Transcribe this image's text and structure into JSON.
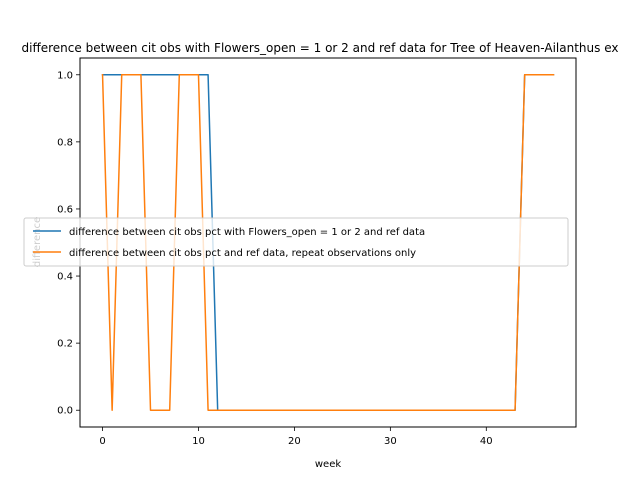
{
  "chart_data": {
    "type": "line",
    "title": "difference between cit obs with Flowers_open = 1 or 2 and ref data for Tree of Heaven-Ailanthus ex",
    "xlabel": "week",
    "ylabel": "difference",
    "xlim": [
      -2.35,
      49.35
    ],
    "ylim": [
      -0.05,
      1.05
    ],
    "xticks": [
      0,
      10,
      20,
      30,
      40
    ],
    "yticks": [
      0.0,
      0.2,
      0.4,
      0.6,
      0.8,
      1.0
    ],
    "xtick_labels": [
      "0",
      "10",
      "20",
      "30",
      "40"
    ],
    "ytick_labels": [
      "0.0",
      "0.2",
      "0.4",
      "0.6",
      "0.8",
      "1.0"
    ],
    "grid": false,
    "legend_position": "center-left",
    "series": [
      {
        "name": "difference between cit obs pct with Flowers_open = 1 or 2 and ref data",
        "color": "#1f77b4",
        "x": [
          0,
          1,
          2,
          3,
          4,
          5,
          6,
          7,
          8,
          9,
          10,
          11,
          12,
          13,
          14,
          15,
          16,
          17,
          18,
          19,
          20,
          21,
          22,
          23,
          24,
          25,
          26,
          27,
          28,
          29,
          30,
          31,
          32,
          33,
          34,
          35,
          36,
          37,
          38,
          39,
          40,
          41,
          42,
          43,
          44,
          45,
          46,
          47
        ],
        "y": [
          1,
          1,
          1,
          1,
          1,
          1,
          1,
          1,
          1,
          1,
          1,
          1,
          0,
          0,
          0,
          0,
          0,
          0,
          0,
          0,
          0,
          0,
          0,
          0,
          0,
          0,
          0,
          0,
          0,
          0,
          0,
          0,
          0,
          0,
          0,
          0,
          0,
          0,
          0,
          0,
          0,
          0,
          0,
          0,
          1,
          1,
          1,
          1
        ]
      },
      {
        "name": "difference between cit obs pct and ref data, repeat observations only",
        "color": "#ff7f0e",
        "x": [
          0,
          1,
          2,
          3,
          4,
          5,
          6,
          7,
          8,
          9,
          10,
          11,
          12,
          13,
          14,
          15,
          16,
          17,
          18,
          19,
          20,
          21,
          22,
          23,
          24,
          25,
          26,
          27,
          28,
          29,
          30,
          31,
          32,
          33,
          34,
          35,
          36,
          37,
          38,
          39,
          40,
          41,
          42,
          43,
          44,
          45,
          46,
          47
        ],
        "y": [
          1,
          0,
          1,
          1,
          1,
          0,
          0,
          0,
          1,
          1,
          1,
          0,
          0,
          0,
          0,
          0,
          0,
          0,
          0,
          0,
          0,
          0,
          0,
          0,
          0,
          0,
          0,
          0,
          0,
          0,
          0,
          0,
          0,
          0,
          0,
          0,
          0,
          0,
          0,
          0,
          0,
          0,
          0,
          0,
          1,
          1,
          1,
          1
        ]
      }
    ]
  }
}
